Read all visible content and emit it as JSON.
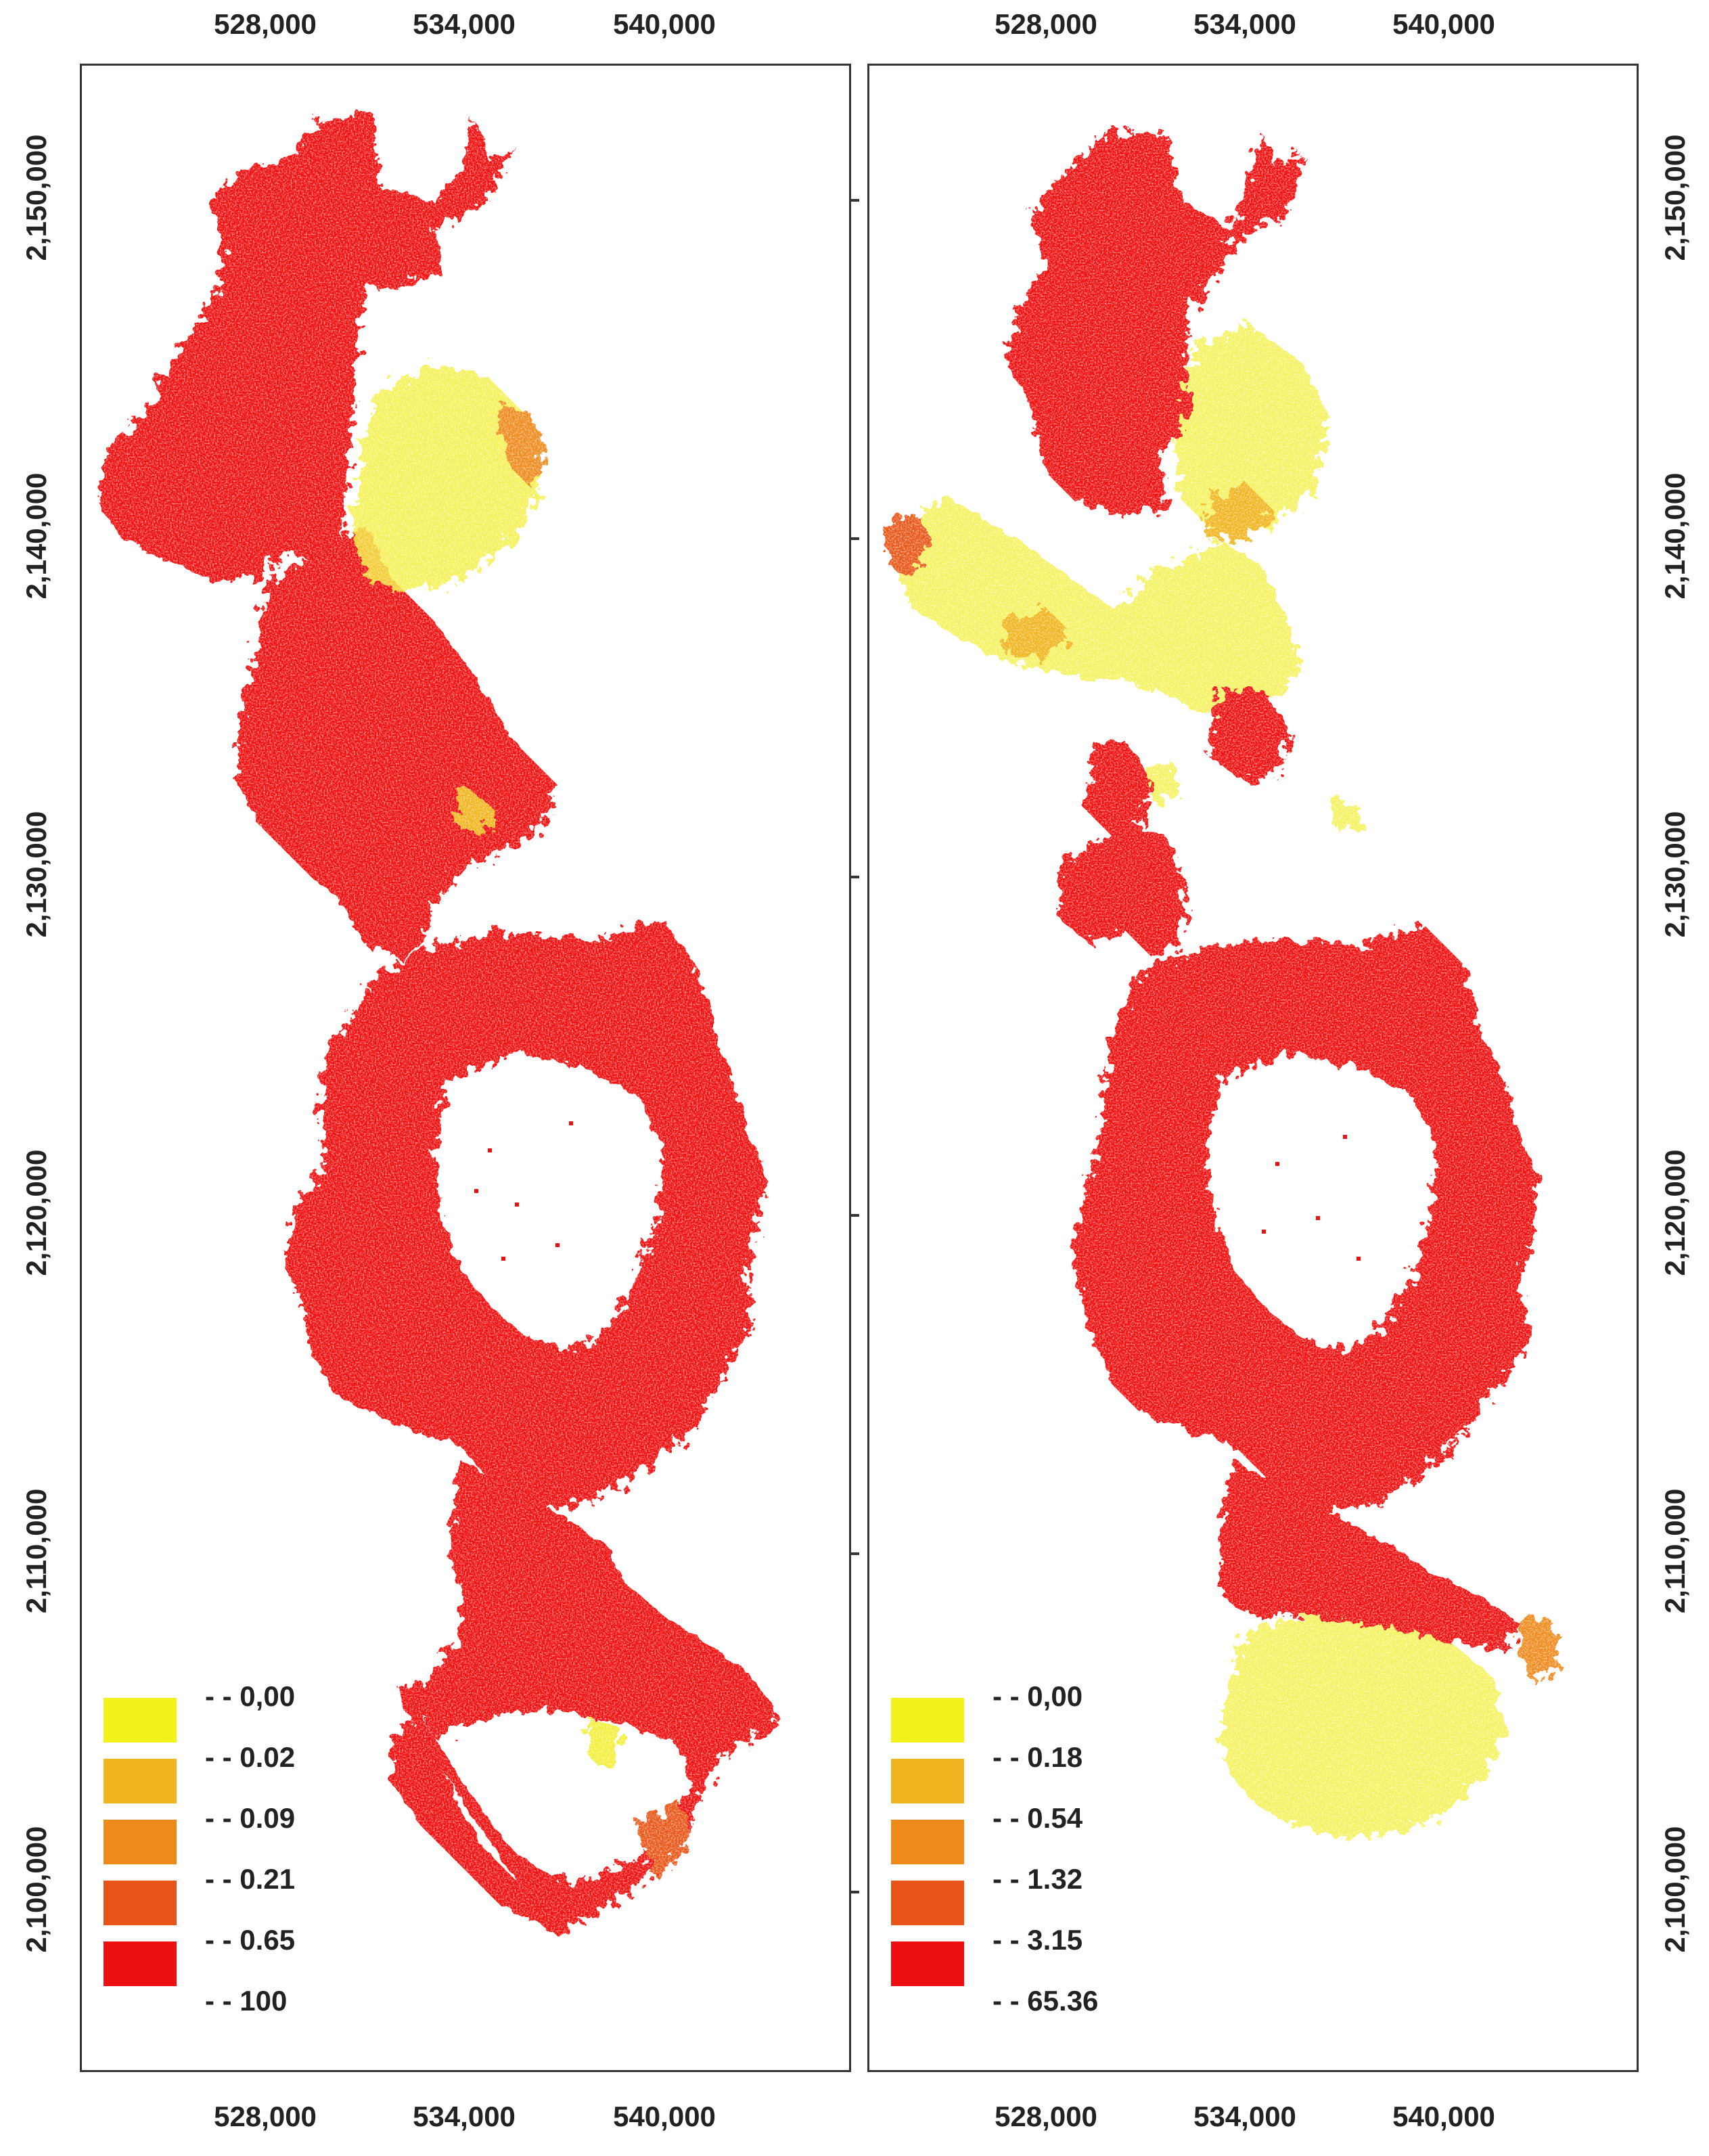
{
  "x_ticks": [
    "528,000",
    "534,000",
    "540,000"
  ],
  "y_ticks": [
    "2,150,000",
    "2,140,000",
    "2,130,000",
    "2,120,000",
    "2,110,000",
    "2,100,000"
  ],
  "colors": {
    "class1": "#f2f21a",
    "class2": "#f0b41e",
    "class3": "#ee8a1c",
    "class4": "#e85418",
    "class5": "#ee1010",
    "yellow_speckle": "#f3ef3a"
  },
  "panels": [
    {
      "legend": [
        "- - 0,00",
        "- - 0.02",
        "- - 0.09",
        "- - 0.21",
        "- - 0.65",
        "- - 100"
      ]
    },
    {
      "legend": [
        "- - 0,00",
        "- - 0.18",
        "- - 0.54",
        "- - 1.32",
        "- - 3.15",
        "- - 65.36"
      ]
    }
  ]
}
